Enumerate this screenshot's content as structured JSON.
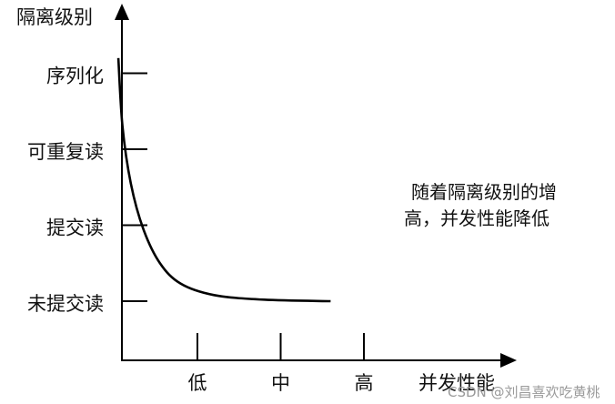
{
  "chart_data": {
    "type": "line",
    "ylabel": "隔离级别",
    "xlabel": "并发性能",
    "y_categories": [
      "未提交读",
      "提交读",
      "可重复读",
      "序列化"
    ],
    "x_categories": [
      "低",
      "中",
      "高"
    ],
    "annotation": {
      "line1": "随着隔离级别的增",
      "line2": "高，并发性能降低"
    },
    "series": [
      {
        "shape": "decreasing-curve",
        "points": [
          {
            "x": 0.05,
            "y": 4.2
          },
          {
            "x": 0.1,
            "y": 3.3
          },
          {
            "x": 0.2,
            "y": 2.55
          },
          {
            "x": 0.35,
            "y": 1.95
          },
          {
            "x": 0.55,
            "y": 1.5
          },
          {
            "x": 0.8,
            "y": 1.23
          },
          {
            "x": 1.2,
            "y": 1.08
          },
          {
            "x": 1.8,
            "y": 1.02
          },
          {
            "x": 2.6,
            "y": 1.0
          }
        ]
      }
    ],
    "colors": {
      "line": "#000000",
      "axis": "#000000"
    },
    "grid": false
  },
  "watermark": "CSDN @刘昌喜欢吃黄桃"
}
